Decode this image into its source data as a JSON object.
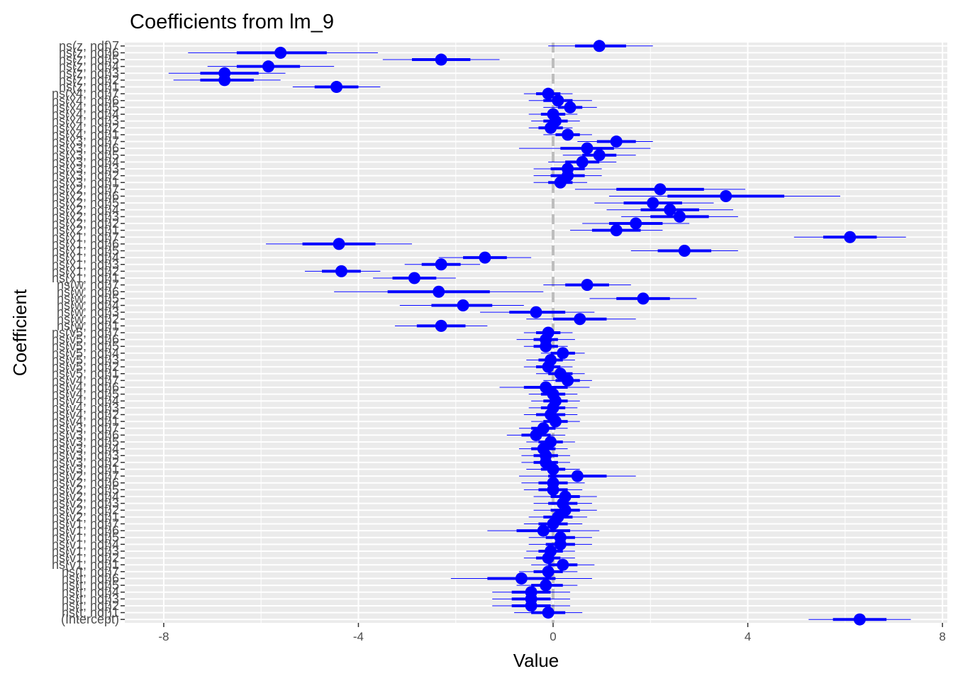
{
  "chart_data": {
    "type": "coefficient_plot",
    "title": "Coefficients from lm_9",
    "xlabel": "Value",
    "ylabel": "Coefficient",
    "xlim": [
      -8.8,
      8.1
    ],
    "x_ticks": [
      -8,
      -4,
      0,
      4,
      8
    ],
    "x_tick_labels": [
      "-8",
      "-4",
      "0",
      "4",
      "8"
    ],
    "reference_line": 0,
    "grid": true,
    "point_color": "#0000ff",
    "reference_color": "#bdbdbd",
    "panel_color": "#ebebeb",
    "columns": [
      "term",
      "estimate",
      "inner_low",
      "inner_high",
      "outer_low",
      "outer_high"
    ],
    "terms": [
      [
        "(Intercept)",
        6.3,
        5.75,
        6.85,
        5.25,
        7.35
      ],
      [
        "ns(t, ndf)1",
        -0.1,
        -0.45,
        0.25,
        -0.8,
        0.6
      ],
      [
        "ns(t, ndf)2",
        -0.45,
        -0.85,
        -0.05,
        -1.25,
        0.35
      ],
      [
        "ns(t, ndf)3",
        -0.45,
        -0.85,
        -0.05,
        -1.25,
        0.35
      ],
      [
        "ns(t, ndf)4",
        -0.45,
        -0.85,
        -0.05,
        -1.25,
        0.35
      ],
      [
        "ns(t, ndf)5",
        -0.15,
        -0.45,
        0.2,
        -0.75,
        0.5
      ],
      [
        "ns(t, ndf)6",
        -0.65,
        -1.35,
        0.05,
        -2.1,
        0.8
      ],
      [
        "ns(t, ndf)7",
        -0.1,
        -0.4,
        0.2,
        -0.7,
        0.5
      ],
      [
        "ns(v1, ndf)1",
        0.2,
        -0.1,
        0.5,
        -0.45,
        0.85
      ],
      [
        "ns(v1, ndf)2",
        -0.1,
        -0.35,
        0.15,
        -0.6,
        0.45
      ],
      [
        "ns(v1, ndf)3",
        -0.05,
        -0.3,
        0.2,
        -0.55,
        0.45
      ],
      [
        "ns(v1, ndf)4",
        0.15,
        -0.15,
        0.45,
        -0.5,
        0.8
      ],
      [
        "ns(v1, ndf)5",
        0.15,
        -0.15,
        0.45,
        -0.5,
        0.8
      ],
      [
        "ns(v1, ndf)6",
        -0.2,
        -0.75,
        0.35,
        -1.35,
        0.95
      ],
      [
        "ns(v1, ndf)7",
        0.0,
        -0.3,
        0.3,
        -0.6,
        0.6
      ],
      [
        "ns(v2, ndf)1",
        0.1,
        -0.2,
        0.4,
        -0.5,
        0.7
      ],
      [
        "ns(v2, ndf)2",
        0.25,
        -0.05,
        0.55,
        -0.4,
        0.9
      ],
      [
        "ns(v2, ndf)3",
        0.2,
        -0.1,
        0.5,
        -0.4,
        0.8
      ],
      [
        "ns(v2, ndf)4",
        0.25,
        -0.05,
        0.55,
        -0.4,
        0.9
      ],
      [
        "ns(v2, ndf)5",
        0.0,
        -0.3,
        0.3,
        -0.6,
        0.6
      ],
      [
        "ns(v2, ndf)6",
        0.0,
        -0.3,
        0.3,
        -0.65,
        0.65
      ],
      [
        "ns(v2, ndf)7",
        0.5,
        -0.1,
        1.1,
        -0.7,
        1.7
      ],
      [
        "ns(v3, ndf)1",
        0.0,
        -0.25,
        0.25,
        -0.55,
        0.55
      ],
      [
        "ns(v3, ndf)2",
        -0.15,
        -0.4,
        0.1,
        -0.65,
        0.35
      ],
      [
        "ns(v3, ndf)3",
        -0.15,
        -0.4,
        0.1,
        -0.65,
        0.35
      ],
      [
        "ns(v3, ndf)4",
        -0.2,
        -0.45,
        0.05,
        -0.7,
        0.3
      ],
      [
        "ns(v3, ndf)5",
        -0.05,
        -0.3,
        0.2,
        -0.55,
        0.45
      ],
      [
        "ns(v3, ndf)6",
        -0.35,
        -0.65,
        -0.05,
        -0.95,
        0.25
      ],
      [
        "ns(v3, ndf)7",
        -0.2,
        -0.45,
        0.05,
        -0.7,
        0.3
      ],
      [
        "ns(v4, ndf)1",
        0.05,
        -0.2,
        0.3,
        -0.45,
        0.55
      ],
      [
        "ns(v4, ndf)2",
        -0.05,
        -0.35,
        0.25,
        -0.6,
        0.5
      ],
      [
        "ns(v4, ndf)3",
        0.0,
        -0.25,
        0.25,
        -0.5,
        0.5
      ],
      [
        "ns(v4, ndf)4",
        0.05,
        -0.2,
        0.3,
        -0.45,
        0.55
      ],
      [
        "ns(v4, ndf)5",
        0.0,
        -0.25,
        0.25,
        -0.5,
        0.5
      ],
      [
        "ns(v4, ndf)6",
        -0.15,
        -0.6,
        0.3,
        -1.1,
        0.75
      ],
      [
        "ns(v4, ndf)7",
        0.3,
        0.05,
        0.55,
        -0.2,
        0.8
      ],
      [
        "ns(v5, ndf)1",
        0.15,
        -0.1,
        0.4,
        -0.35,
        0.65
      ],
      [
        "ns(v5, ndf)2",
        -0.1,
        -0.35,
        0.15,
        -0.6,
        0.4
      ],
      [
        "ns(v5, ndf)3",
        -0.05,
        -0.3,
        0.2,
        -0.55,
        0.45
      ],
      [
        "ns(v5, ndf)4",
        0.2,
        -0.05,
        0.45,
        -0.25,
        0.65
      ],
      [
        "ns(v5, ndf)5",
        -0.15,
        -0.4,
        0.1,
        -0.6,
        0.3
      ],
      [
        "ns(v5, ndf)6",
        -0.15,
        -0.4,
        0.1,
        -0.75,
        0.45
      ],
      [
        "ns(v5, ndf)7",
        -0.1,
        -0.35,
        0.15,
        -0.6,
        0.4
      ],
      [
        "ns(w, ndf)1",
        -2.3,
        -2.8,
        -1.8,
        -3.25,
        -1.35
      ],
      [
        "ns(w, ndf)2",
        0.55,
        0.0,
        1.1,
        -0.55,
        1.7
      ],
      [
        "ns(w, ndf)3",
        -0.35,
        -0.9,
        0.25,
        -1.5,
        0.85
      ],
      [
        "ns(w, ndf)4",
        -1.85,
        -2.5,
        -1.25,
        -3.15,
        -0.6
      ],
      [
        "ns(w, ndf)5",
        1.85,
        1.3,
        2.4,
        0.75,
        2.95
      ],
      [
        "ns(w, ndf)6",
        -2.35,
        -3.4,
        -1.3,
        -4.5,
        -0.2
      ],
      [
        "ns(w, ndf)7",
        0.7,
        0.25,
        1.15,
        -0.2,
        1.6
      ],
      [
        "ns(x1, ndf)1",
        -2.85,
        -3.3,
        -2.4,
        -3.7,
        -2.0
      ],
      [
        "ns(x1, ndf)2",
        -4.35,
        -4.75,
        -3.95,
        -5.1,
        -3.55
      ],
      [
        "ns(x1, ndf)3",
        -2.3,
        -2.7,
        -1.9,
        -3.05,
        -1.5
      ],
      [
        "ns(x1, ndf)4",
        -1.4,
        -1.85,
        -0.95,
        -2.35,
        -0.45
      ],
      [
        "ns(x1, ndf)5",
        2.7,
        2.15,
        3.25,
        1.6,
        3.8
      ],
      [
        "ns(x1, ndf)6",
        -4.4,
        -5.15,
        -3.65,
        -5.9,
        -2.9
      ],
      [
        "ns(x1, ndf)7",
        6.1,
        5.55,
        6.65,
        4.95,
        7.25
      ],
      [
        "ns(x2, ndf)1",
        1.3,
        0.8,
        1.8,
        0.35,
        2.25
      ],
      [
        "ns(x2, ndf)2",
        1.7,
        1.15,
        2.25,
        0.6,
        2.8
      ],
      [
        "ns(x2, ndf)3",
        2.6,
        2.0,
        3.2,
        1.4,
        3.8
      ],
      [
        "ns(x2, ndf)4",
        2.4,
        1.8,
        3.0,
        1.1,
        3.7
      ],
      [
        "ns(x2, ndf)5",
        2.05,
        1.45,
        2.65,
        0.85,
        3.3
      ],
      [
        "ns(x2, ndf)6",
        3.55,
        2.35,
        4.75,
        1.15,
        5.9
      ],
      [
        "ns(x2, ndf)7",
        2.2,
        1.3,
        3.1,
        0.45,
        3.95
      ],
      [
        "ns(x3, ndf)1",
        0.15,
        -0.1,
        0.4,
        -0.4,
        0.7
      ],
      [
        "ns(x3, ndf)2",
        0.3,
        -0.05,
        0.65,
        -0.4,
        1.0
      ],
      [
        "ns(x3, ndf)3",
        0.3,
        -0.05,
        0.65,
        -0.4,
        1.0
      ],
      [
        "ns(x3, ndf)4",
        0.6,
        0.25,
        0.95,
        -0.1,
        1.3
      ],
      [
        "ns(x3, ndf)5",
        0.95,
        0.6,
        1.3,
        0.2,
        1.7
      ],
      [
        "ns(x3, ndf)6",
        0.7,
        0.15,
        1.25,
        -0.7,
        2.0
      ],
      [
        "ns(x3, ndf)7",
        1.3,
        0.9,
        1.7,
        0.5,
        2.05
      ],
      [
        "ns(x4, ndf)1",
        0.3,
        0.05,
        0.55,
        -0.2,
        0.8
      ],
      [
        "ns(x4, ndf)2",
        -0.05,
        -0.3,
        0.2,
        -0.5,
        0.4
      ],
      [
        "ns(x4, ndf)3",
        0.05,
        -0.2,
        0.3,
        -0.45,
        0.55
      ],
      [
        "ns(x4, ndf)4",
        0.0,
        -0.25,
        0.25,
        -0.5,
        0.5
      ],
      [
        "ns(x4, ndf)5",
        0.35,
        0.1,
        0.6,
        -0.2,
        0.9
      ],
      [
        "ns(x4, ndf)6",
        0.1,
        -0.2,
        0.4,
        -0.5,
        0.8
      ],
      [
        "ns(x4, ndf)7",
        -0.1,
        -0.35,
        0.15,
        -0.6,
        0.4
      ],
      [
        "ns(z, ndf)1",
        -4.45,
        -4.9,
        -4.0,
        -5.35,
        -3.55
      ],
      [
        "ns(z, ndf)2",
        -6.75,
        -7.25,
        -6.15,
        -7.8,
        -5.6
      ],
      [
        "ns(z, ndf)3",
        -6.75,
        -7.25,
        -6.05,
        -7.9,
        -5.5
      ],
      [
        "ns(z, ndf)4",
        -5.85,
        -6.5,
        -5.2,
        -7.1,
        -4.5
      ],
      [
        "ns(z, ndf)5",
        -2.3,
        -2.9,
        -1.7,
        -3.5,
        -1.1
      ],
      [
        "ns(z, ndf)6",
        -5.6,
        -6.5,
        -4.65,
        -7.5,
        -3.6
      ],
      [
        "ns(z, ndf)7",
        0.95,
        0.45,
        1.5,
        -0.1,
        2.05
      ]
    ]
  }
}
